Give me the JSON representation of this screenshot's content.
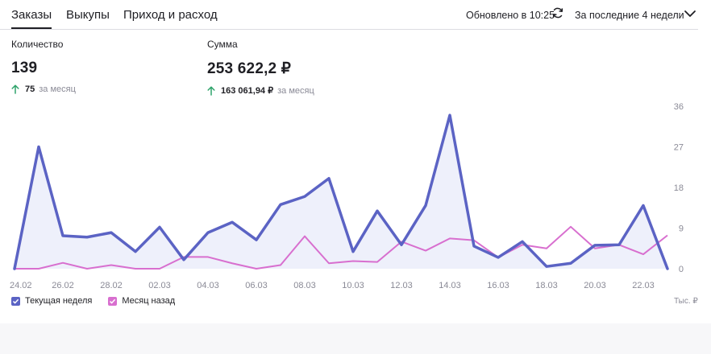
{
  "tabs": [
    {
      "label": "Заказы",
      "active": true
    },
    {
      "label": "Выкупы",
      "active": false
    },
    {
      "label": "Приход и расход",
      "active": false
    }
  ],
  "header": {
    "updated": "Обновлено в 10:25",
    "period": "За последние 4 недели"
  },
  "metrics": {
    "quantity": {
      "label": "Количество",
      "value": "139",
      "delta": "75",
      "delta_label": "за месяц"
    },
    "sum": {
      "label": "Сумма",
      "value": "253 622,2 ₽",
      "delta": "163 061,94 ₽",
      "delta_label": "за месяц"
    }
  },
  "colors": {
    "current": "#5b63c4",
    "current_fill": "#eef0fb",
    "previous": "#d86fcf",
    "positive_arrow": "#2fa36b"
  },
  "legend": {
    "current": "Текущая неделя",
    "previous": "Месяц назад",
    "unit": "Тыс. ₽"
  },
  "chart_data": {
    "type": "area",
    "x_tick_labels": [
      "24.02",
      "26.02",
      "28.02",
      "02.03",
      "04.03",
      "06.03",
      "08.03",
      "10.03",
      "12.03",
      "14.03",
      "16.03",
      "18.03",
      "20.03",
      "22.03"
    ],
    "y_ticks": [
      0,
      9,
      18,
      27,
      36
    ],
    "ylim": [
      0,
      36
    ],
    "ylabel": "Тыс. ₽",
    "grid": false,
    "legend_position": "bottom-left",
    "series": [
      {
        "name": "Текущая неделя",
        "values": [
          0,
          27,
          7.3,
          7,
          8,
          3.8,
          9.2,
          2,
          8,
          10.3,
          6.4,
          14.2,
          16,
          20,
          3.8,
          12.8,
          5.3,
          14,
          34,
          5,
          2.5,
          6,
          0.5,
          1.2,
          5.2,
          5.3,
          14,
          0
        ]
      },
      {
        "name": "Месяц назад",
        "values": [
          0,
          0,
          1.3,
          0,
          0.8,
          0,
          0,
          2.6,
          2.6,
          1.2,
          0,
          0.8,
          7.2,
          1.2,
          1.7,
          1.5,
          6,
          4,
          6.7,
          6.3,
          2.5,
          5.3,
          4.5,
          9.3,
          4.5,
          5.3,
          3.2,
          7.4
        ]
      }
    ]
  }
}
